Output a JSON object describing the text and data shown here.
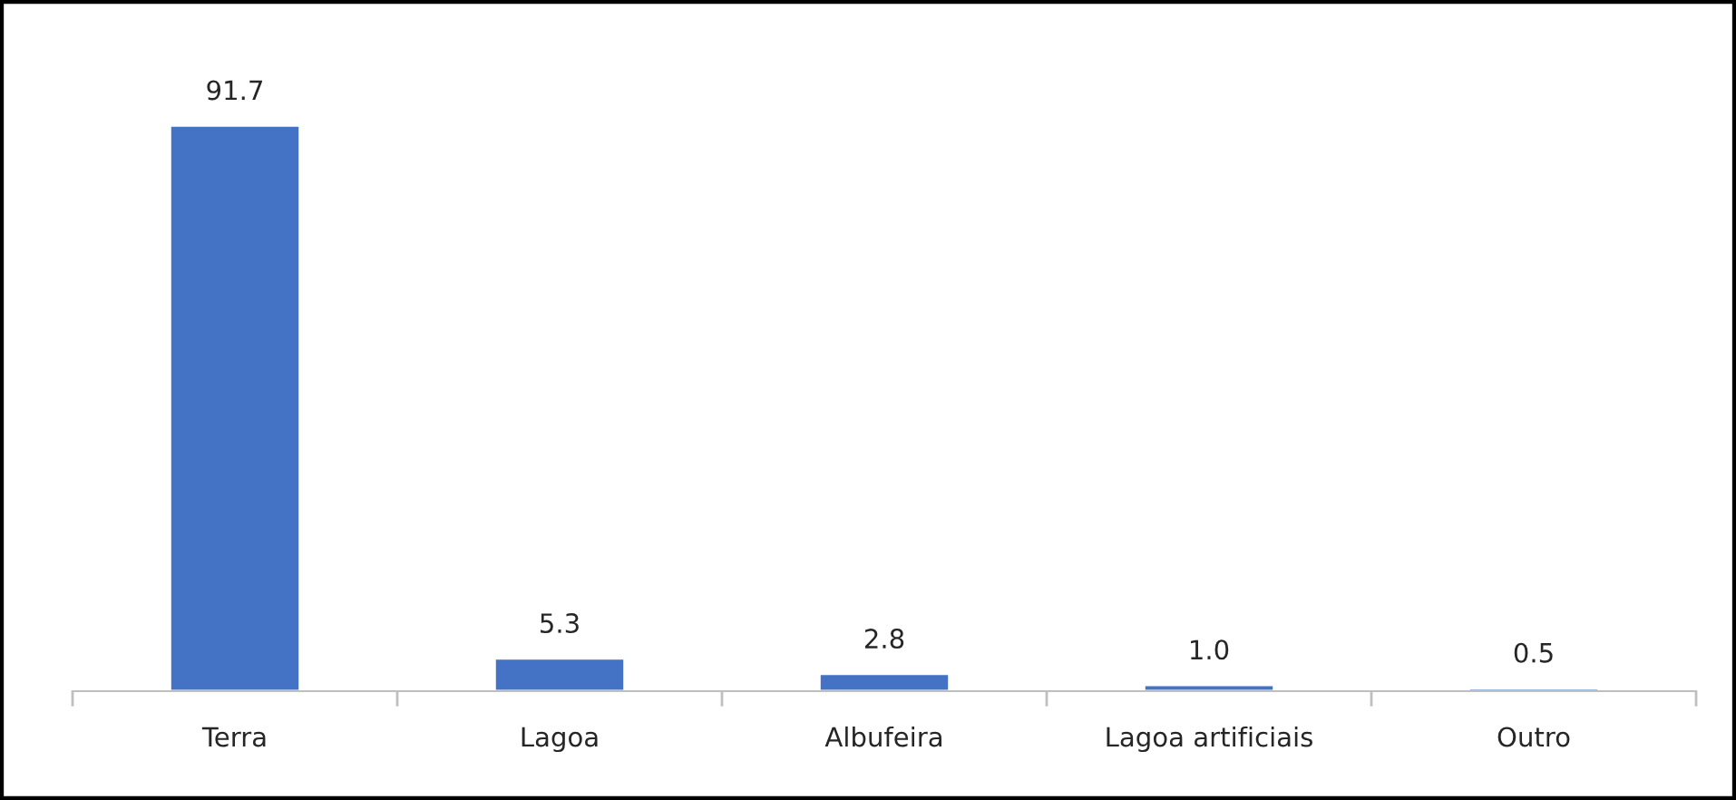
{
  "chart_data": {
    "type": "bar",
    "categories": [
      "Terra",
      "Lagoa",
      "Albufeira",
      "Lagoa artificiais",
      "Outro"
    ],
    "values": [
      91.7,
      5.3,
      2.8,
      1.0,
      0.5
    ],
    "color": "#4472c4",
    "value_labels": [
      "91.7",
      "5.3",
      "2.8",
      "1.0",
      "0.5"
    ]
  }
}
